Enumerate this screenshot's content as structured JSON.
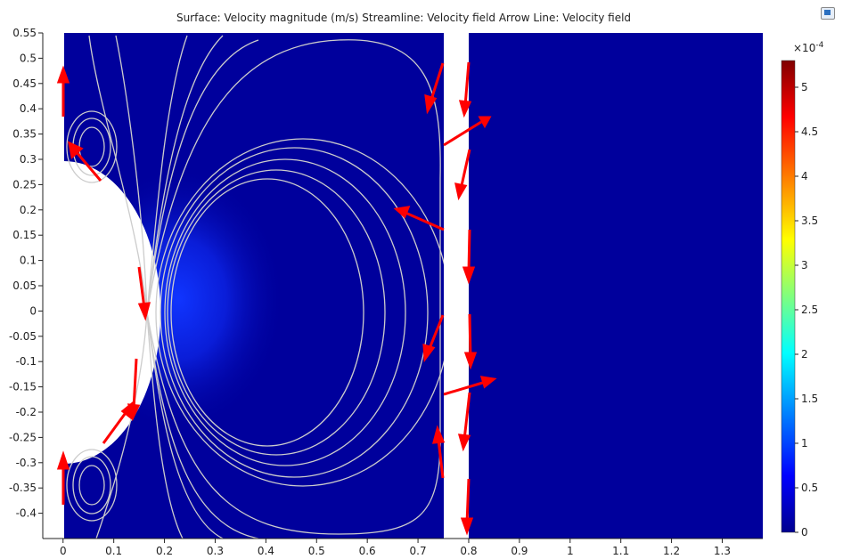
{
  "header": {
    "title": "Surface: Velocity magnitude (m/s)  Streamline: Velocity field  Arrow Line: Velocity field"
  },
  "chart_data": {
    "type": "heatmap",
    "title": "Surface: Velocity magnitude (m/s)  Streamline: Velocity field  Arrow Line: Velocity field",
    "xlim": [
      -0.04,
      1.38
    ],
    "ylim": [
      -0.45,
      0.55
    ],
    "x_ticks": [
      "0",
      "0.1",
      "0.2",
      "0.3",
      "0.4",
      "0.5",
      "0.6",
      "0.7",
      "0.8",
      "0.9",
      "1",
      "1.1",
      "1.2",
      "1.3"
    ],
    "y_ticks": [
      "0.55",
      "0.5",
      "0.45",
      "0.4",
      "0.35",
      "0.3",
      "0.25",
      "0.2",
      "0.15",
      "0.1",
      "0.05",
      "0",
      "-0.05",
      "-0.1",
      "-0.15",
      "-0.2",
      "-0.25",
      "-0.3",
      "-0.35",
      "-0.4"
    ],
    "colorbar": {
      "exponent_label": "×10",
      "exponent_power": "-4",
      "min": 0,
      "max": 5.3,
      "ticks": [
        "5",
        "4.5",
        "4",
        "3.5",
        "3",
        "2.5",
        "2",
        "1.5",
        "1",
        "0.5",
        "0"
      ],
      "colormap": [
        "#00008f",
        "#0000ff",
        "#00ffff",
        "#ffff00",
        "#ff0000",
        "#800000"
      ]
    },
    "colors": {
      "background_field": "#00009c",
      "streamline": "#cccccc",
      "arrow": "#ff0000",
      "gap": "#ffffff"
    }
  }
}
